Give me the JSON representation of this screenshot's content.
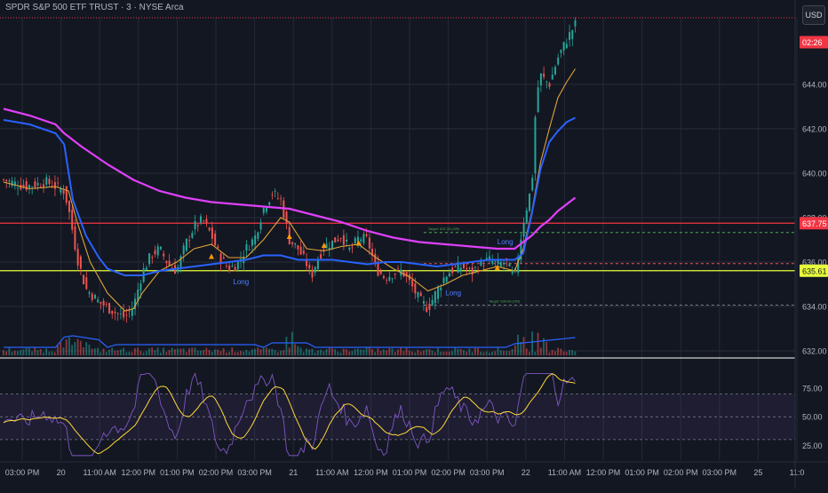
{
  "header": {
    "symbol_title": "SPDR S&P 500 ETF TRUST · 3 · NYSE Arca",
    "currency_button": "USD"
  },
  "price_axis": {
    "ticks": [
      "644.00",
      "642.00",
      "640.00",
      "638.00",
      "636.00",
      "634.00",
      "632.00"
    ],
    "badges": [
      {
        "label": "02:26",
        "price": 645.9,
        "color": "#f23645"
      },
      {
        "label": "637.75",
        "price": 637.75,
        "color": "#f23645"
      },
      {
        "label": "635.61",
        "price": 635.61,
        "color": "#e8ff3c"
      }
    ]
  },
  "rsi_axis": {
    "ticks": [
      "75.00",
      "50.00",
      "25.00"
    ]
  },
  "time_axis": {
    "labels": [
      "03:00 PM",
      "20",
      "11:00 AM",
      "12:00 PM",
      "01:00 PM",
      "02:00 PM",
      "03:00 PM",
      "21",
      "11:00 AM",
      "12:00 PM",
      "01:00 PM",
      "02:00 PM",
      "03:00 PM",
      "22",
      "11:00 AM",
      "12:00 PM",
      "01:00 PM",
      "02:00 PM",
      "03:00 PM",
      "25",
      "11:0"
    ]
  },
  "annotations": {
    "target_high": "Target: 637.33 (OR)",
    "target_low": "Target: 634.06 (OR)",
    "long_label_1": "Long",
    "long_label_2": "Long",
    "long_label_3": "Long"
  },
  "chart_data": {
    "type": "line",
    "title": "SPDR S&P 500 ETF TRUST · 3 · NYSE Arca",
    "timeframe": "3",
    "ylim": [
      631.8,
      647.0
    ],
    "horizontal_levels": [
      {
        "price": 637.75,
        "color": "#f23645",
        "style": "solid"
      },
      {
        "price": 635.61,
        "color": "#e8ff3c",
        "style": "solid"
      },
      {
        "price": 637.33,
        "color": "#4caf50",
        "style": "dashed"
      },
      {
        "price": 635.93,
        "color": "#ef5350",
        "style": "dashed"
      },
      {
        "price": 634.06,
        "color": "#787b86",
        "style": "dashed"
      }
    ],
    "series": [
      {
        "color": "#b2b5be",
        "points": [
          [
            0,
            639.7
          ],
          [
            2.5,
            639.4
          ],
          [
            5,
            639.6
          ],
          [
            7,
            639.2
          ],
          [
            7.5,
            638.4
          ],
          [
            8.5,
            636.2
          ],
          [
            9.5,
            634.8
          ],
          [
            11,
            634.2
          ],
          [
            13,
            633.7
          ],
          [
            14,
            633.5
          ],
          [
            15,
            634.0
          ],
          [
            16,
            635.5
          ],
          [
            17,
            636.3
          ],
          [
            18,
            636.6
          ],
          [
            19,
            635.9
          ],
          [
            20,
            635.6
          ],
          [
            21,
            636.8
          ],
          [
            22,
            637.6
          ],
          [
            23,
            637.9
          ],
          [
            24,
            637.2
          ],
          [
            25,
            636.2
          ],
          [
            26,
            635.7
          ],
          [
            27,
            635.9
          ],
          [
            28,
            636.6
          ],
          [
            29,
            637.1
          ],
          [
            30,
            638.4
          ],
          [
            31,
            639.1
          ],
          [
            32,
            638.8
          ],
          [
            33,
            637.0
          ],
          [
            34,
            636.6
          ],
          [
            35,
            635.9
          ],
          [
            35.5,
            635.3
          ],
          [
            36,
            635.9
          ],
          [
            37,
            636.7
          ],
          [
            38,
            636.9
          ],
          [
            39,
            637.2
          ],
          [
            40,
            636.5
          ],
          [
            41,
            637.1
          ],
          [
            42,
            637.0
          ],
          [
            43,
            635.7
          ],
          [
            44,
            635.3
          ],
          [
            45,
            635.5
          ],
          [
            46,
            635.6
          ],
          [
            47,
            635.0
          ],
          [
            48,
            634.3
          ],
          [
            49,
            633.9
          ],
          [
            50,
            634.7
          ],
          [
            51,
            635.4
          ],
          [
            52,
            635.7
          ],
          [
            53,
            635.8
          ],
          [
            54,
            635.5
          ],
          [
            55,
            635.9
          ],
          [
            56,
            636.1
          ],
          [
            57,
            635.9
          ],
          [
            58,
            636.0
          ],
          [
            59,
            635.3
          ],
          [
            60,
            637.8
          ],
          [
            61,
            639.5
          ],
          [
            61.5,
            643.5
          ],
          [
            62,
            644.4
          ],
          [
            63,
            644.0
          ],
          [
            64,
            645.2
          ],
          [
            65,
            646.0
          ],
          [
            66,
            646.7
          ]
        ]
      },
      {
        "color": "#e0a33a",
        "points": [
          [
            0,
            639.6
          ],
          [
            3,
            639.3
          ],
          [
            6,
            639.4
          ],
          [
            7.5,
            639.2
          ],
          [
            8.5,
            637.8
          ],
          [
            10,
            636.0
          ],
          [
            12,
            634.6
          ],
          [
            14,
            633.8
          ],
          [
            15,
            633.9
          ],
          [
            16,
            634.6
          ],
          [
            18,
            635.6
          ],
          [
            20,
            636.0
          ],
          [
            22,
            636.6
          ],
          [
            24,
            636.8
          ],
          [
            26,
            636.2
          ],
          [
            28,
            636.2
          ],
          [
            30,
            637.0
          ],
          [
            32,
            638.0
          ],
          [
            33,
            637.8
          ],
          [
            35,
            636.6
          ],
          [
            37,
            636.5
          ],
          [
            39,
            636.7
          ],
          [
            41,
            636.8
          ],
          [
            43,
            636.2
          ],
          [
            45,
            635.7
          ],
          [
            47,
            635.3
          ],
          [
            49,
            634.7
          ],
          [
            51,
            635.0
          ],
          [
            53,
            635.4
          ],
          [
            55,
            635.6
          ],
          [
            57,
            635.8
          ],
          [
            59,
            635.6
          ],
          [
            60,
            636.6
          ],
          [
            61,
            638.3
          ],
          [
            62,
            640.5
          ],
          [
            63,
            642.0
          ],
          [
            64,
            643.4
          ],
          [
            65,
            644.1
          ],
          [
            66,
            644.7
          ]
        ]
      },
      {
        "color": "#2962ff",
        "points": [
          [
            0,
            642.4
          ],
          [
            3,
            642.2
          ],
          [
            6,
            641.8
          ],
          [
            7,
            641.3
          ],
          [
            8,
            638.8
          ],
          [
            9.5,
            637.2
          ],
          [
            11,
            636.2
          ],
          [
            12,
            635.7
          ],
          [
            14,
            635.4
          ],
          [
            16,
            635.4
          ],
          [
            18,
            635.6
          ],
          [
            20,
            635.7
          ],
          [
            22,
            635.8
          ],
          [
            24,
            635.9
          ],
          [
            26,
            636.0
          ],
          [
            28,
            636.1
          ],
          [
            30,
            636.3
          ],
          [
            32,
            636.3
          ],
          [
            34,
            636.1
          ],
          [
            36,
            636.1
          ],
          [
            38,
            636.1
          ],
          [
            40,
            636.0
          ],
          [
            42,
            635.9
          ],
          [
            44,
            636.0
          ],
          [
            46,
            636.0
          ],
          [
            48,
            635.9
          ],
          [
            50,
            635.8
          ],
          [
            52,
            635.9
          ],
          [
            54,
            636.0
          ],
          [
            56,
            636.1
          ],
          [
            58,
            636.1
          ],
          [
            59,
            636.1
          ],
          [
            60,
            636.4
          ],
          [
            61,
            638.2
          ],
          [
            62,
            640.2
          ],
          [
            63,
            641.4
          ],
          [
            64,
            641.9
          ],
          [
            65,
            642.3
          ],
          [
            66,
            642.5
          ]
        ]
      },
      {
        "color": "#e040fb",
        "points": [
          [
            0,
            642.9
          ],
          [
            3,
            642.6
          ],
          [
            6,
            642.2
          ],
          [
            7,
            641.8
          ],
          [
            9,
            641.2
          ],
          [
            12,
            640.4
          ],
          [
            15,
            639.7
          ],
          [
            18,
            639.2
          ],
          [
            21,
            638.9
          ],
          [
            24,
            638.7
          ],
          [
            27,
            638.6
          ],
          [
            30,
            638.5
          ],
          [
            33,
            638.4
          ],
          [
            36,
            638.1
          ],
          [
            39,
            637.8
          ],
          [
            42,
            637.4
          ],
          [
            45,
            637.1
          ],
          [
            48,
            636.9
          ],
          [
            51,
            636.8
          ],
          [
            54,
            636.7
          ],
          [
            57,
            636.6
          ],
          [
            59,
            636.6
          ],
          [
            60,
            636.9
          ],
          [
            61,
            637.2
          ],
          [
            62,
            637.6
          ],
          [
            63,
            637.9
          ],
          [
            64,
            638.3
          ],
          [
            65,
            638.6
          ],
          [
            66,
            638.9
          ]
        ]
      }
    ]
  }
}
